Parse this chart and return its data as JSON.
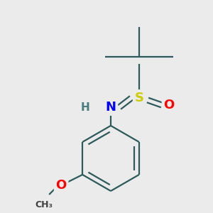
{
  "bg_color": "#ebebeb",
  "atom_colors": {
    "H": "#4a7c7c",
    "N": "#0000ff",
    "O": "#ff0000",
    "S": "#cccc00"
  },
  "bond_color": "#2d5a5a",
  "bond_width": 1.6,
  "fig_bg": "#ebebeb"
}
